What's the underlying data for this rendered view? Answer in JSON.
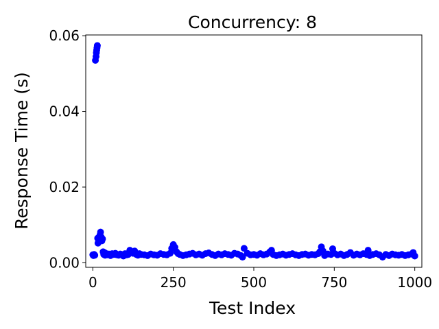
{
  "chart_data": {
    "type": "scatter",
    "title": "Concurrency: 8",
    "xlabel": "Test Index",
    "ylabel": "Response Time (s)",
    "xlim": [
      -22,
      1022
    ],
    "ylim": [
      -0.0012,
      0.0602
    ],
    "xticks": [
      0,
      250,
      500,
      750,
      1000
    ],
    "xtick_labels": [
      "0",
      "250",
      "500",
      "750",
      "1000"
    ],
    "yticks": [
      0.0,
      0.02,
      0.04,
      0.06
    ],
    "ytick_labels": [
      "0.00",
      "0.02",
      "0.04",
      "0.06"
    ],
    "grid": false,
    "marker_color": "#0000ff",
    "series": [
      {
        "x": [
          0,
          2,
          4,
          6,
          8,
          10,
          11,
          12,
          13,
          14,
          15,
          16,
          18,
          20,
          22,
          24,
          26,
          28,
          30,
          32,
          34,
          36,
          38,
          40,
          45,
          50,
          55,
          60,
          65,
          70,
          75,
          80,
          85,
          90,
          95,
          100,
          105,
          110,
          115,
          120,
          125,
          130,
          135,
          140,
          145,
          150,
          160,
          170,
          180,
          190,
          200,
          210,
          220,
          230,
          240,
          245,
          250,
          255,
          260,
          265,
          270,
          280,
          290,
          300,
          310,
          320,
          330,
          340,
          350,
          360,
          370,
          380,
          390,
          400,
          410,
          420,
          430,
          440,
          450,
          460,
          465,
          470,
          480,
          490,
          500,
          510,
          520,
          530,
          540,
          550,
          555,
          560,
          570,
          580,
          590,
          600,
          610,
          620,
          630,
          640,
          650,
          660,
          670,
          680,
          690,
          700,
          705,
          710,
          715,
          720,
          730,
          740,
          745,
          750,
          760,
          770,
          780,
          790,
          800,
          810,
          820,
          830,
          840,
          850,
          855,
          860,
          870,
          880,
          890,
          900,
          910,
          920,
          930,
          940,
          950,
          960,
          970,
          980,
          990,
          995,
          1000
        ],
        "y": [
          0.0021,
          0.0019,
          0.0022,
          0.002,
          0.0535,
          0.0545,
          0.0555,
          0.0562,
          0.0568,
          0.0574,
          0.0065,
          0.0052,
          0.0058,
          0.0062,
          0.0073,
          0.0081,
          0.0068,
          0.0058,
          0.0063,
          0.0029,
          0.0022,
          0.0027,
          0.002,
          0.0025,
          0.0021,
          0.0023,
          0.0019,
          0.0024,
          0.0022,
          0.0025,
          0.0021,
          0.002,
          0.0023,
          0.0022,
          0.0018,
          0.0024,
          0.0021,
          0.0022,
          0.0033,
          0.0028,
          0.0025,
          0.0031,
          0.0022,
          0.002,
          0.0024,
          0.0022,
          0.0021,
          0.0019,
          0.0023,
          0.0021,
          0.002,
          0.0024,
          0.0022,
          0.0021,
          0.0025,
          0.0038,
          0.0048,
          0.0041,
          0.0029,
          0.0024,
          0.0022,
          0.0019,
          0.0021,
          0.0023,
          0.0025,
          0.0021,
          0.0023,
          0.002,
          0.0024,
          0.0026,
          0.0022,
          0.0019,
          0.0023,
          0.0021,
          0.0024,
          0.0022,
          0.002,
          0.0025,
          0.0023,
          0.0019,
          0.0015,
          0.0038,
          0.0025,
          0.0021,
          0.0022,
          0.002,
          0.0024,
          0.0021,
          0.0023,
          0.0029,
          0.0033,
          0.0022,
          0.0019,
          0.0021,
          0.0023,
          0.002,
          0.0022,
          0.0024,
          0.0021,
          0.0019,
          0.0022,
          0.0023,
          0.002,
          0.0022,
          0.0021,
          0.0024,
          0.0029,
          0.0042,
          0.0031,
          0.0019,
          0.0023,
          0.0022,
          0.0037,
          0.0025,
          0.0021,
          0.0023,
          0.0019,
          0.0022,
          0.0027,
          0.002,
          0.0023,
          0.0021,
          0.0024,
          0.0022,
          0.0033,
          0.0019,
          0.0022,
          0.0024,
          0.0021,
          0.0015,
          0.0022,
          0.0019,
          0.0023,
          0.0021,
          0.002,
          0.0022,
          0.0019,
          0.0021,
          0.0023,
          0.0027,
          0.0018
        ]
      }
    ]
  }
}
